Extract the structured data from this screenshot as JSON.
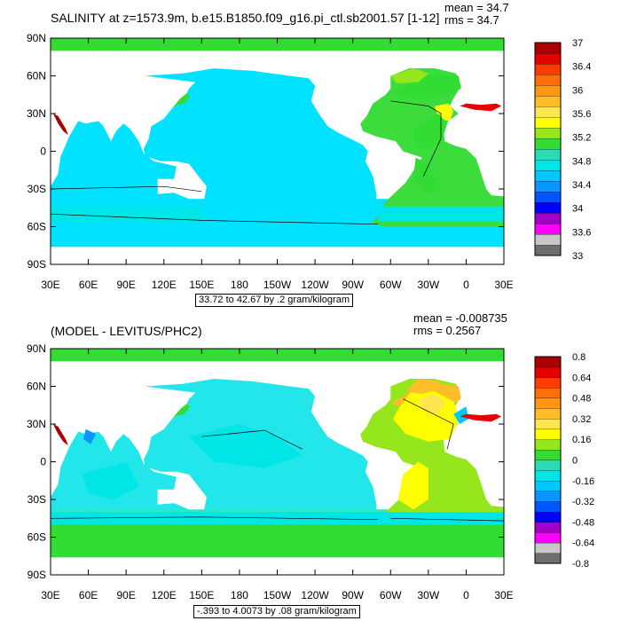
{
  "panels": [
    {
      "title": "SALINITY at z=1573.9m, b.e15.B1850.f09_g16.pi_ctl.sb2001.57 [1-12]",
      "mean_label": "mean = 34.7",
      "rms_label": "rms = 34.7",
      "range_label": "33.72 to 42.67 by .2 gram/kilogram"
    },
    {
      "title": "(MODEL - LEVITUS/PHC2)",
      "mean_label": "mean = -0.008735",
      "rms_label": "rms = 0.2567",
      "range_label": "-.393 to 4.0073 by .08 gram/kilogram"
    }
  ],
  "chart_data": [
    {
      "type": "heatmap",
      "title": "SALINITY at z=1573.9m, b.e15.B1850.f09_g16.pi_ctl.sb2001.57 [1-12]",
      "xlabel": "",
      "ylabel": "",
      "x_ticks": [
        "30E",
        "60E",
        "90E",
        "120E",
        "150E",
        "180",
        "150W",
        "120W",
        "90W",
        "60W",
        "30W",
        "0",
        "30E"
      ],
      "y_ticks": [
        "90N",
        "60N",
        "30N",
        "0",
        "30S",
        "60S",
        "90S"
      ],
      "xlim": [
        30,
        390
      ],
      "ylim": [
        -90,
        90
      ],
      "colorbar": {
        "labels": [
          "33",
          "33.6",
          "34",
          "34.4",
          "34.8",
          "35.2",
          "35.6",
          "36",
          "36.4",
          "37"
        ],
        "colors": [
          "#6e6e6e",
          "#c8c8c8",
          "#ff00ff",
          "#a000c8",
          "#0000ff",
          "#0055ff",
          "#0a96ff",
          "#00c8ff",
          "#00e6e6",
          "#2adcb4",
          "#32dc32",
          "#96e61e",
          "#ffff00",
          "#ffe650",
          "#ffbe28",
          "#ff9614",
          "#ff6e0a",
          "#ff3c00",
          "#e60000",
          "#aa0000"
        ]
      },
      "stats": {
        "mean": 34.7,
        "rms": 34.7
      },
      "contour_info": "33.72 to 42.67 by .2 gram/kilogram"
    },
    {
      "type": "heatmap",
      "title": "(MODEL - LEVITUS/PHC2)",
      "xlabel": "",
      "ylabel": "",
      "x_ticks": [
        "30E",
        "60E",
        "90E",
        "120E",
        "150E",
        "180",
        "150W",
        "120W",
        "90W",
        "60W",
        "30W",
        "0",
        "30E"
      ],
      "y_ticks": [
        "90N",
        "60N",
        "30N",
        "0",
        "30S",
        "60S",
        "90S"
      ],
      "xlim": [
        30,
        390
      ],
      "ylim": [
        -90,
        90
      ],
      "colorbar": {
        "labels": [
          "-0.8",
          "-0.64",
          "-0.48",
          "-0.32",
          "-0.16",
          "0",
          "0.16",
          "0.32",
          "0.48",
          "0.64",
          "0.8"
        ],
        "colors": [
          "#6e6e6e",
          "#c8c8c8",
          "#ff00ff",
          "#a000c8",
          "#0000ff",
          "#0055ff",
          "#0a96ff",
          "#00c8ff",
          "#00e6e6",
          "#2adcb4",
          "#32dc32",
          "#96e61e",
          "#ffff00",
          "#ffe650",
          "#ffbe28",
          "#ff9614",
          "#ff6e0a",
          "#ff3c00",
          "#e60000",
          "#aa0000"
        ]
      },
      "stats": {
        "mean": -0.008735,
        "rms": 0.2567
      },
      "contour_info": "-.393 to 4.0073 by .08 gram/kilogram"
    }
  ]
}
